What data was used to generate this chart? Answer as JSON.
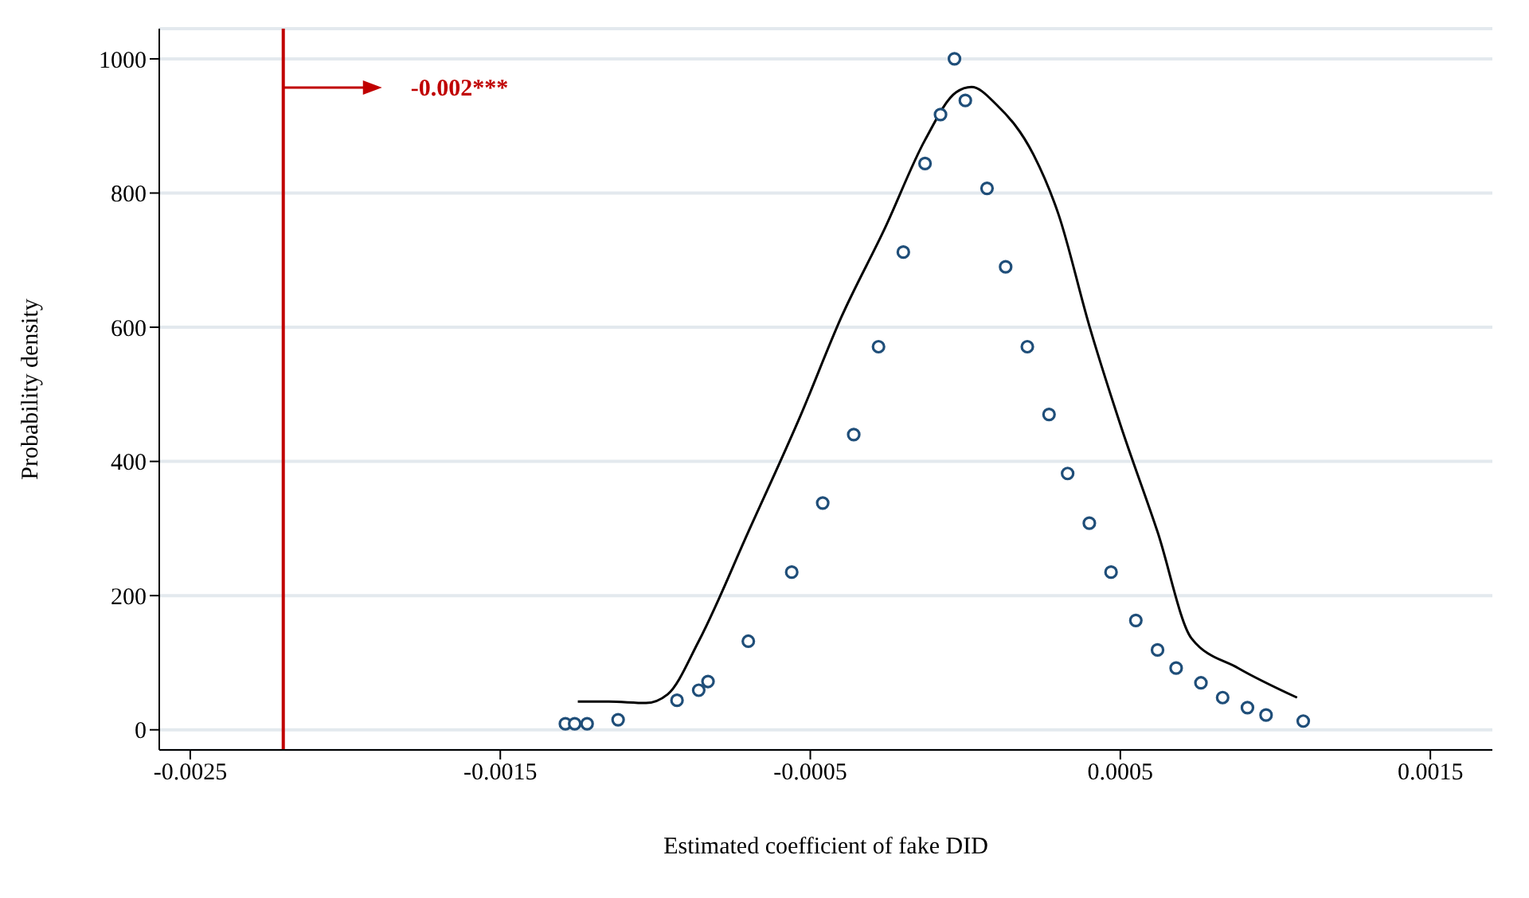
{
  "chart_data": {
    "type": "scatter",
    "xlabel": "Estimated coefficient of fake DID",
    "ylabel": "Probability density",
    "xlim": [
      -0.0026,
      0.0017
    ],
    "xticks": [
      -0.0025,
      -0.0015,
      -0.0005,
      0.0005,
      0.0015
    ],
    "ylim": [
      -30,
      1045
    ],
    "yticks": [
      0,
      200,
      400,
      600,
      800,
      1000
    ],
    "grid": "y",
    "marker": "circle",
    "series": [
      {
        "color": "#1f4e79",
        "x": [
          -0.00129,
          -0.00126,
          -0.00122,
          -0.00112,
          -0.00093,
          -0.00086,
          -0.00083,
          -0.0007,
          -0.00056,
          -0.00046,
          -0.00036,
          -0.00028,
          -0.0002,
          -0.00013,
          -8e-05,
          -3.5e-05,
          0,
          7e-05,
          0.00013,
          0.0002,
          0.00027,
          0.00033,
          0.0004,
          0.00047,
          0.00055,
          0.00062,
          0.00068,
          0.00076,
          0.00083,
          0.00091,
          0.00097,
          0.00109
        ],
        "values": [
          9,
          9,
          9,
          15,
          44,
          59,
          72,
          132,
          235,
          338,
          440,
          571,
          712,
          844,
          917,
          1000,
          938,
          807,
          690,
          571,
          470,
          382,
          308,
          235,
          163,
          119,
          92,
          70,
          48,
          33,
          22,
          13
        ]
      },
      {
        "type": "line",
        "color": "#000000",
        "marker": "none",
        "x": [
          -0.00125,
          -0.00115,
          -0.00103,
          -0.00096,
          -0.00086,
          -0.0007,
          -0.00053,
          -0.0004,
          -0.00026,
          -0.00013,
          -3e-05,
          2e-05,
          0.0001,
          0.00022,
          0.0003,
          0.0004,
          0.0005,
          0.00062,
          0.00073,
          0.00088,
          0.00107
        ],
        "values": [
          42,
          42,
          40,
          53,
          132,
          295,
          470,
          615,
          747,
          879,
          950,
          958,
          932,
          857,
          769,
          602,
          455,
          295,
          136,
          92,
          48
        ]
      }
    ],
    "ref_lines": [
      {
        "axis": "x",
        "value": -0.0022,
        "label": "-0.002***",
        "color": "#c00000"
      }
    ]
  }
}
